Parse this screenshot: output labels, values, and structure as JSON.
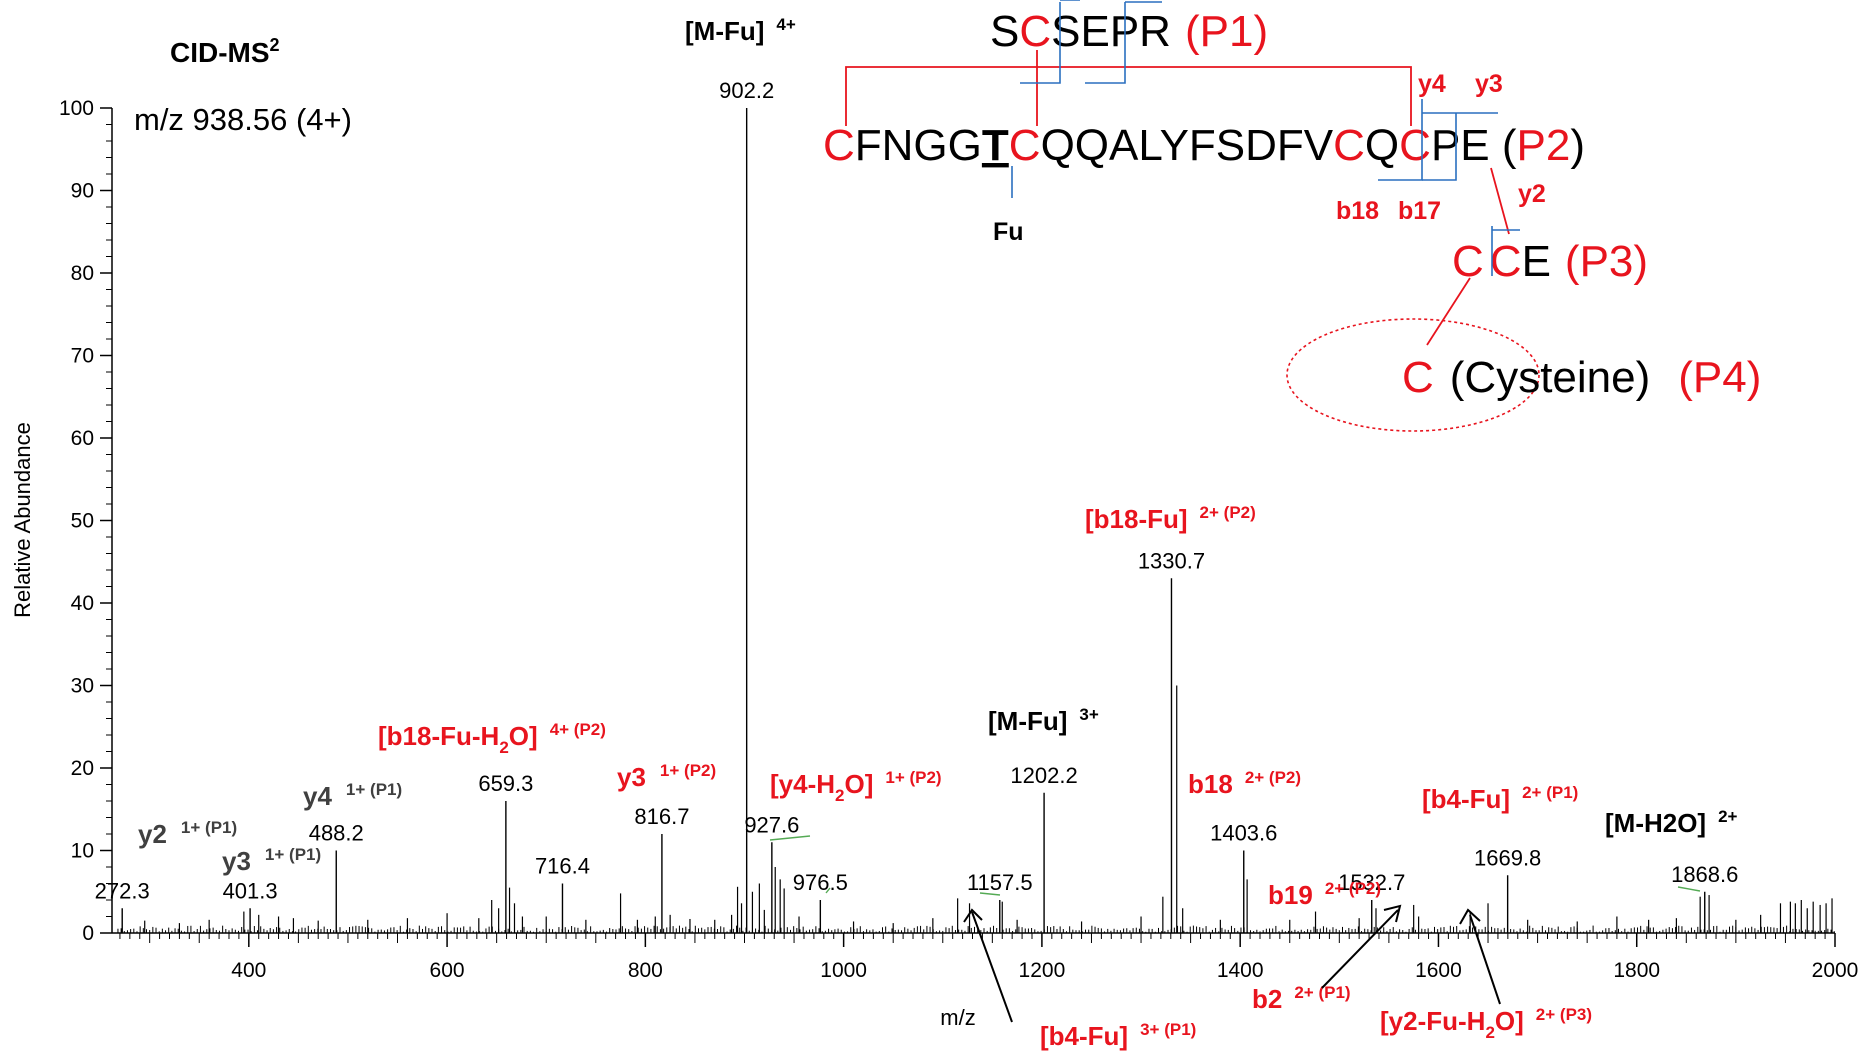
{
  "chart_data": {
    "type": "bar",
    "title": "CID-MS",
    "title_sup": "2",
    "precursor": "m/z 938.56 (4+)",
    "xlabel": "m/z",
    "ylabel": "Relative Abundance",
    "xlim": [
      262,
      2000
    ],
    "ylim": [
      0,
      100
    ],
    "x_ticks": [
      "400",
      "600",
      "800",
      "1000",
      "1200",
      "1400",
      "1600",
      "1800",
      "2000"
    ],
    "y_ticks": [
      "0",
      "10",
      "20",
      "30",
      "40",
      "50",
      "60",
      "70",
      "80",
      "90",
      "100"
    ],
    "labeled_peaks": [
      {
        "mz": 272.3,
        "rel": 3,
        "label": "272.3"
      },
      {
        "mz": 401.3,
        "rel": 3,
        "label": "401.3"
      },
      {
        "mz": 488.2,
        "rel": 10,
        "label": "488.2"
      },
      {
        "mz": 659.3,
        "rel": 16,
        "label": "659.3"
      },
      {
        "mz": 716.4,
        "rel": 6,
        "label": "716.4"
      },
      {
        "mz": 816.7,
        "rel": 12,
        "label": "816.7"
      },
      {
        "mz": 902.2,
        "rel": 100,
        "label": "902.2"
      },
      {
        "mz": 927.6,
        "rel": 11,
        "label": "927.6"
      },
      {
        "mz": 976.5,
        "rel": 4,
        "label": "976.5"
      },
      {
        "mz": 1157.5,
        "rel": 4,
        "label": "1157.5"
      },
      {
        "mz": 1202.2,
        "rel": 17,
        "label": "1202.2"
      },
      {
        "mz": 1330.7,
        "rel": 43,
        "label": "1330.7"
      },
      {
        "mz": 1403.6,
        "rel": 10,
        "label": "1403.6"
      },
      {
        "mz": 1532.7,
        "rel": 4,
        "label": "1532.7"
      },
      {
        "mz": 1669.8,
        "rel": 7,
        "label": "1669.8"
      },
      {
        "mz": 1868.6,
        "rel": 5,
        "label": "1868.6"
      }
    ],
    "minor_peaks": [
      {
        "mz": 295,
        "rel": 1.5
      },
      {
        "mz": 330,
        "rel": 1.2
      },
      {
        "mz": 360,
        "rel": 1.6
      },
      {
        "mz": 395,
        "rel": 2.6
      },
      {
        "mz": 410,
        "rel": 2.2
      },
      {
        "mz": 430,
        "rel": 2.0
      },
      {
        "mz": 445,
        "rel": 1.8
      },
      {
        "mz": 470,
        "rel": 1.5
      },
      {
        "mz": 520,
        "rel": 1.6
      },
      {
        "mz": 560,
        "rel": 1.8
      },
      {
        "mz": 600,
        "rel": 2.4
      },
      {
        "mz": 632,
        "rel": 1.8
      },
      {
        "mz": 645,
        "rel": 4.0
      },
      {
        "mz": 652,
        "rel": 3.0
      },
      {
        "mz": 663,
        "rel": 5.5
      },
      {
        "mz": 668,
        "rel": 3.6
      },
      {
        "mz": 676,
        "rel": 2.0
      },
      {
        "mz": 700,
        "rel": 2.0
      },
      {
        "mz": 740,
        "rel": 1.6
      },
      {
        "mz": 775,
        "rel": 4.8
      },
      {
        "mz": 792,
        "rel": 1.6
      },
      {
        "mz": 810,
        "rel": 2.0
      },
      {
        "mz": 825,
        "rel": 2.2
      },
      {
        "mz": 845,
        "rel": 1.7
      },
      {
        "mz": 870,
        "rel": 1.6
      },
      {
        "mz": 887,
        "rel": 2.2
      },
      {
        "mz": 893,
        "rel": 5.6
      },
      {
        "mz": 897,
        "rel": 3.6
      },
      {
        "mz": 908,
        "rel": 5.0
      },
      {
        "mz": 915,
        "rel": 6.0
      },
      {
        "mz": 920,
        "rel": 2.8
      },
      {
        "mz": 931,
        "rel": 8.0
      },
      {
        "mz": 936,
        "rel": 6.5
      },
      {
        "mz": 940,
        "rel": 5.4
      },
      {
        "mz": 955,
        "rel": 2.0
      },
      {
        "mz": 1010,
        "rel": 1.4
      },
      {
        "mz": 1050,
        "rel": 1.2
      },
      {
        "mz": 1090,
        "rel": 1.8
      },
      {
        "mz": 1115,
        "rel": 4.2
      },
      {
        "mz": 1127,
        "rel": 3.6
      },
      {
        "mz": 1160,
        "rel": 3.8
      },
      {
        "mz": 1175,
        "rel": 1.6
      },
      {
        "mz": 1240,
        "rel": 1.4
      },
      {
        "mz": 1300,
        "rel": 2.0
      },
      {
        "mz": 1322,
        "rel": 4.4
      },
      {
        "mz": 1336,
        "rel": 30.0
      },
      {
        "mz": 1342,
        "rel": 3.0
      },
      {
        "mz": 1380,
        "rel": 1.6
      },
      {
        "mz": 1407,
        "rel": 6.5
      },
      {
        "mz": 1450,
        "rel": 1.6
      },
      {
        "mz": 1476,
        "rel": 2.6
      },
      {
        "mz": 1520,
        "rel": 1.8
      },
      {
        "mz": 1537,
        "rel": 3.0
      },
      {
        "mz": 1575,
        "rel": 3.4
      },
      {
        "mz": 1580,
        "rel": 2.0
      },
      {
        "mz": 1632,
        "rel": 2.6
      },
      {
        "mz": 1650,
        "rel": 3.6
      },
      {
        "mz": 1690,
        "rel": 1.6
      },
      {
        "mz": 1740,
        "rel": 1.4
      },
      {
        "mz": 1780,
        "rel": 2.0
      },
      {
        "mz": 1812,
        "rel": 1.6
      },
      {
        "mz": 1840,
        "rel": 1.8
      },
      {
        "mz": 1864,
        "rel": 4.4
      },
      {
        "mz": 1873,
        "rel": 4.6
      },
      {
        "mz": 1900,
        "rel": 1.6
      },
      {
        "mz": 1925,
        "rel": 2.2
      },
      {
        "mz": 1945,
        "rel": 3.6
      },
      {
        "mz": 1955,
        "rel": 3.8
      },
      {
        "mz": 1960,
        "rel": 3.6
      },
      {
        "mz": 1966,
        "rel": 4.0
      },
      {
        "mz": 1972,
        "rel": 3.0
      },
      {
        "mz": 1978,
        "rel": 3.8
      },
      {
        "mz": 1985,
        "rel": 3.4
      },
      {
        "mz": 1991,
        "rel": 3.6
      },
      {
        "mz": 1997,
        "rel": 4.2
      }
    ],
    "annotations": [
      {
        "id": "y2-p1",
        "text": "y2",
        "sup": "1+ (P1)",
        "color": "#404040"
      },
      {
        "id": "y3-p1",
        "text": "y3",
        "sup": "1+ (P1)",
        "color": "#404040"
      },
      {
        "id": "y4-p1",
        "text": "y4",
        "sup": "1+ (P1)",
        "color": "#404040"
      },
      {
        "id": "b18-fu-h2o",
        "text": "[b18-Fu-H",
        "sub": "2",
        "text2": "O]",
        "sup": "4+ (P2)",
        "color": "#e8141e"
      },
      {
        "id": "y3-p2",
        "text": "y3",
        "sup": "1+ (P2)",
        "color": "#e8141e"
      },
      {
        "id": "m-fu-4",
        "text": "[M-Fu]",
        "sup": "4+",
        "color": "#000000"
      },
      {
        "id": "y4-h2o",
        "text": "[y4-H",
        "sub": "2",
        "text2": "O]",
        "sup": "1+ (P2)",
        "color": "#e8141e"
      },
      {
        "id": "m-fu-3",
        "text": "[M-Fu]",
        "sup": "3+",
        "color": "#000000"
      },
      {
        "id": "b18-fu",
        "text": "[b18-Fu]",
        "sup": "2+ (P2)",
        "color": "#e8141e"
      },
      {
        "id": "b18-p2",
        "text": "b18",
        "sup": "2+ (P2)",
        "color": "#e8141e"
      },
      {
        "id": "b19-p2",
        "text": "b19",
        "sup": "2+ (P2)",
        "color": "#e8141e"
      },
      {
        "id": "b4-fu-2",
        "text": "[b4-Fu]",
        "sup": "2+ (P1)",
        "color": "#e8141e"
      },
      {
        "id": "m-h2o",
        "text": "[M-H2O]",
        "sup": "2+",
        "color": "#000000"
      },
      {
        "id": "b4-fu-3",
        "text": "[b4-Fu]",
        "sup": "3+ (P1)",
        "color": "#e8141e"
      },
      {
        "id": "b2-p1",
        "text": "b2",
        "sup": "2+ (P1)",
        "color": "#e8141e"
      },
      {
        "id": "y2-fu-h2o",
        "text": "[y2-Fu-H",
        "sub": "2",
        "text2": "O]",
        "sup": "2+ (P3)",
        "color": "#e8141e"
      }
    ]
  },
  "structure": {
    "p1": {
      "s1": "S",
      "c1": "C",
      "rest": "SEPR",
      "tag": "(P1)"
    },
    "p2": {
      "c1": "C",
      "mid1": "FNGG",
      "t": "T",
      "c2": "C",
      "mid2": "QQALYFSDFV",
      "c3": "C",
      "q": "Q",
      "c4": "C",
      "end": "PE ",
      "tag_open": "(",
      "tag": "P2",
      "tag_close": ")"
    },
    "p3": {
      "c1": "C",
      "c2": "C",
      "e": "E",
      "tag": "(P3)"
    },
    "p4": {
      "c": "C",
      "name": "(Cysteine)",
      "tag": "(P4)"
    },
    "fu": "Fu",
    "frags": {
      "y4": "y4",
      "y3": "y3",
      "y2": "y2",
      "b18": "b18",
      "b17": "b17"
    }
  },
  "colors": {
    "red": "#e8141e",
    "blue": "#2a6fbf",
    "dark": "#404040",
    "black": "#000000"
  }
}
